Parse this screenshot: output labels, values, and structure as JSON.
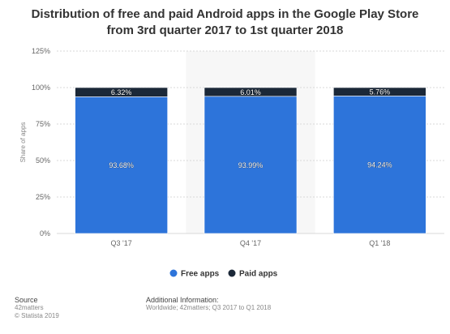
{
  "chart_data": {
    "type": "bar",
    "stacked": true,
    "title_line1": "Distribution of free and paid Android apps in the Google Play Store",
    "title_line2": "from 3rd quarter 2017 to 1st quarter 2018",
    "ylabel": "Share of apps",
    "ylim": [
      0,
      125
    ],
    "yticks": [
      "0%",
      "25%",
      "50%",
      "75%",
      "100%",
      "125%"
    ],
    "categories": [
      "Q3 '17",
      "Q4 '17",
      "Q1 '18"
    ],
    "highlighted_category": "Q4 '17",
    "series": [
      {
        "name": "Free apps",
        "values": [
          93.68,
          93.99,
          94.24
        ],
        "labels": [
          "93.68%",
          "93.99%",
          "94.24%"
        ],
        "color": "#2d74da"
      },
      {
        "name": "Paid apps",
        "values": [
          6.32,
          6.01,
          5.76
        ],
        "labels": [
          "6.32%",
          "6.01%",
          "5.76%"
        ],
        "color": "#1b2838"
      }
    ],
    "legend_position": "bottom"
  },
  "footer": {
    "source_heading": "Source",
    "source_lines": [
      "42matters",
      "© Statista 2019"
    ],
    "info_heading": "Additional Information:",
    "info_text": "Worldwide; 42matters; Q3 2017 to Q1 2018"
  }
}
